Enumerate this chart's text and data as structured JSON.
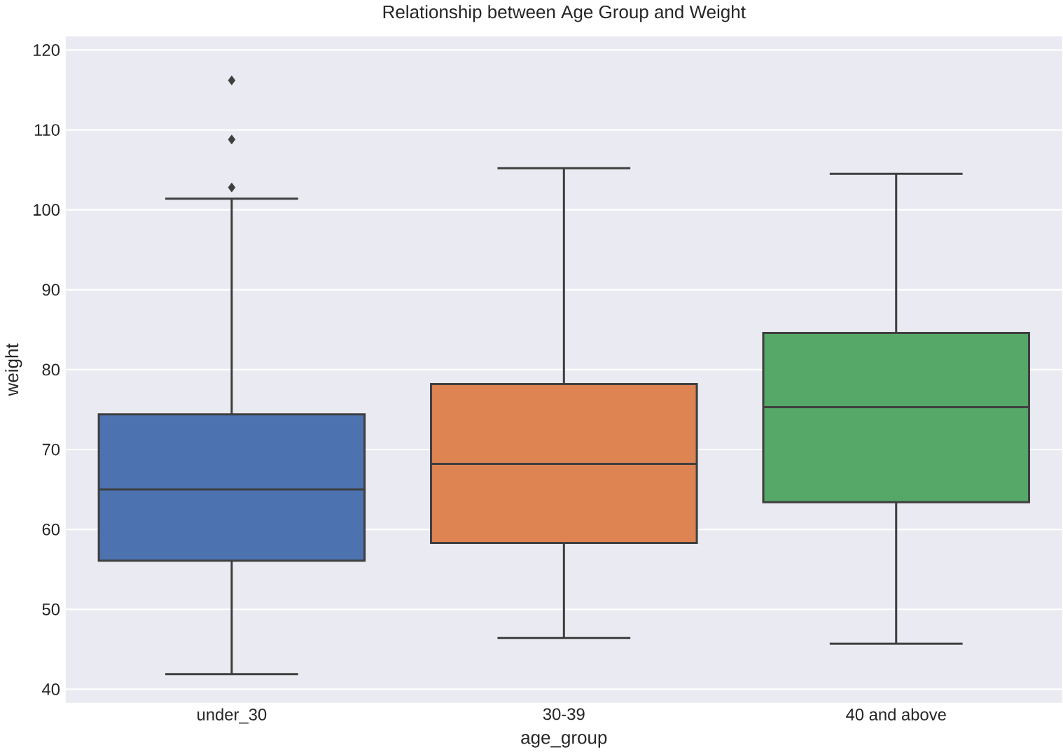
{
  "chart_data": {
    "type": "box",
    "title": "Relationship between Age Group and Weight",
    "xlabel": "age_group",
    "ylabel": "weight",
    "categories": [
      "under_30",
      "30-39",
      "40 and above"
    ],
    "colors": [
      "#4c72b0",
      "#dd8452",
      "#55a868"
    ],
    "boxes": [
      {
        "low": 41.9,
        "q1": 56.1,
        "median": 65.0,
        "q3": 74.4,
        "high": 101.4,
        "outliers": [
          102.8,
          108.8,
          116.2
        ]
      },
      {
        "low": 46.4,
        "q1": 58.3,
        "median": 68.2,
        "q3": 78.2,
        "high": 105.2
      },
      {
        "low": 45.7,
        "q1": 63.4,
        "median": 75.3,
        "q3": 84.6,
        "high": 104.5
      }
    ],
    "ylim": [
      38.3,
      121.7
    ],
    "yticks": [
      40,
      50,
      60,
      70,
      80,
      90,
      100,
      110,
      120
    ],
    "grid": "y",
    "marker": "diamond"
  }
}
